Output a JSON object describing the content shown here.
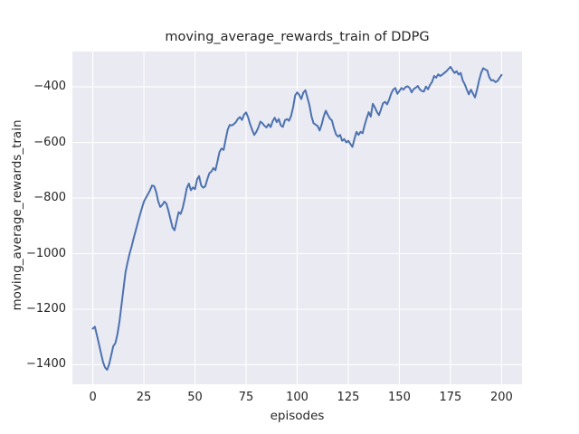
{
  "chart_data": {
    "type": "line",
    "title": "moving_average_rewards_train of DDPG",
    "xlabel": "episodes",
    "ylabel": "moving_average_rewards_train",
    "xlim": [
      -10,
      210
    ],
    "ylim": [
      -1470,
      -273
    ],
    "x_ticks": [
      0,
      25,
      50,
      75,
      100,
      125,
      150,
      175,
      200
    ],
    "x_tick_labels": [
      "0",
      "25",
      "50",
      "75",
      "100",
      "125",
      "150",
      "175",
      "200"
    ],
    "y_ticks": [
      -400,
      -600,
      -800,
      -1000,
      -1200,
      -1400
    ],
    "y_tick_labels": [
      "−400",
      "−600",
      "−800",
      "−1000",
      "−1200",
      "−1400"
    ],
    "grid": true,
    "legend": null,
    "colors": {
      "line": "#4c72b0",
      "axes_background": "#eaeaf2",
      "gridline": "#ffffff",
      "text": "#262626",
      "figure_background": "#ffffff"
    },
    "series": [
      {
        "name": "moving_average_rewards_train",
        "points": [
          [
            0,
            -1270
          ],
          [
            1,
            -1263
          ],
          [
            2,
            -1293
          ],
          [
            3,
            -1325
          ],
          [
            4,
            -1358
          ],
          [
            5,
            -1390
          ],
          [
            6,
            -1410
          ],
          [
            7,
            -1418
          ],
          [
            8,
            -1398
          ],
          [
            9,
            -1366
          ],
          [
            10,
            -1333
          ],
          [
            11,
            -1323
          ],
          [
            12,
            -1292
          ],
          [
            13,
            -1247
          ],
          [
            14,
            -1187
          ],
          [
            15,
            -1127
          ],
          [
            16,
            -1067
          ],
          [
            17,
            -1032
          ],
          [
            18,
            -1000
          ],
          [
            19,
            -974
          ],
          [
            20,
            -944
          ],
          [
            21,
            -917
          ],
          [
            22,
            -889
          ],
          [
            23,
            -862
          ],
          [
            24,
            -837
          ],
          [
            25,
            -813
          ],
          [
            26,
            -799
          ],
          [
            27,
            -786
          ],
          [
            28,
            -772
          ],
          [
            29,
            -755
          ],
          [
            30,
            -757
          ],
          [
            31,
            -778
          ],
          [
            32,
            -812
          ],
          [
            33,
            -832
          ],
          [
            34,
            -825
          ],
          [
            35,
            -813
          ],
          [
            36,
            -820
          ],
          [
            37,
            -846
          ],
          [
            38,
            -876
          ],
          [
            39,
            -906
          ],
          [
            40,
            -916
          ],
          [
            41,
            -883
          ],
          [
            42,
            -851
          ],
          [
            43,
            -857
          ],
          [
            44,
            -835
          ],
          [
            45,
            -802
          ],
          [
            46,
            -764
          ],
          [
            47,
            -748
          ],
          [
            48,
            -772
          ],
          [
            49,
            -762
          ],
          [
            50,
            -768
          ],
          [
            51,
            -733
          ],
          [
            52,
            -721
          ],
          [
            53,
            -754
          ],
          [
            54,
            -763
          ],
          [
            55,
            -758
          ],
          [
            56,
            -733
          ],
          [
            57,
            -711
          ],
          [
            58,
            -705
          ],
          [
            59,
            -692
          ],
          [
            60,
            -700
          ],
          [
            61,
            -668
          ],
          [
            62,
            -634
          ],
          [
            63,
            -622
          ],
          [
            64,
            -627
          ],
          [
            65,
            -589
          ],
          [
            66,
            -554
          ],
          [
            67,
            -537
          ],
          [
            68,
            -539
          ],
          [
            69,
            -534
          ],
          [
            70,
            -527
          ],
          [
            71,
            -515
          ],
          [
            72,
            -509
          ],
          [
            73,
            -519
          ],
          [
            74,
            -500
          ],
          [
            75,
            -492
          ],
          [
            76,
            -510
          ],
          [
            77,
            -535
          ],
          [
            78,
            -555
          ],
          [
            79,
            -573
          ],
          [
            80,
            -562
          ],
          [
            81,
            -546
          ],
          [
            82,
            -525
          ],
          [
            83,
            -531
          ],
          [
            84,
            -540
          ],
          [
            85,
            -546
          ],
          [
            86,
            -534
          ],
          [
            87,
            -545
          ],
          [
            88,
            -524
          ],
          [
            89,
            -511
          ],
          [
            90,
            -527
          ],
          [
            91,
            -516
          ],
          [
            92,
            -539
          ],
          [
            93,
            -544
          ],
          [
            94,
            -520
          ],
          [
            95,
            -516
          ],
          [
            96,
            -522
          ],
          [
            97,
            -505
          ],
          [
            98,
            -474
          ],
          [
            99,
            -431
          ],
          [
            100,
            -420
          ],
          [
            101,
            -429
          ],
          [
            102,
            -444
          ],
          [
            103,
            -421
          ],
          [
            104,
            -412
          ],
          [
            105,
            -439
          ],
          [
            106,
            -466
          ],
          [
            107,
            -506
          ],
          [
            108,
            -531
          ],
          [
            109,
            -536
          ],
          [
            110,
            -541
          ],
          [
            111,
            -557
          ],
          [
            112,
            -535
          ],
          [
            113,
            -506
          ],
          [
            114,
            -486
          ],
          [
            115,
            -501
          ],
          [
            116,
            -514
          ],
          [
            117,
            -521
          ],
          [
            118,
            -549
          ],
          [
            119,
            -571
          ],
          [
            120,
            -579
          ],
          [
            121,
            -573
          ],
          [
            122,
            -594
          ],
          [
            123,
            -588
          ],
          [
            124,
            -600
          ],
          [
            125,
            -594
          ],
          [
            126,
            -605
          ],
          [
            127,
            -616
          ],
          [
            128,
            -588
          ],
          [
            129,
            -562
          ],
          [
            130,
            -573
          ],
          [
            131,
            -562
          ],
          [
            132,
            -567
          ],
          [
            133,
            -538
          ],
          [
            134,
            -513
          ],
          [
            135,
            -491
          ],
          [
            136,
            -507
          ],
          [
            137,
            -461
          ],
          [
            138,
            -474
          ],
          [
            139,
            -490
          ],
          [
            140,
            -502
          ],
          [
            141,
            -481
          ],
          [
            142,
            -459
          ],
          [
            143,
            -454
          ],
          [
            144,
            -463
          ],
          [
            145,
            -446
          ],
          [
            146,
            -424
          ],
          [
            147,
            -410
          ],
          [
            148,
            -404
          ],
          [
            149,
            -425
          ],
          [
            150,
            -415
          ],
          [
            151,
            -404
          ],
          [
            152,
            -410
          ],
          [
            153,
            -401
          ],
          [
            154,
            -398
          ],
          [
            155,
            -404
          ],
          [
            156,
            -420
          ],
          [
            157,
            -408
          ],
          [
            158,
            -403
          ],
          [
            159,
            -397
          ],
          [
            160,
            -409
          ],
          [
            161,
            -415
          ],
          [
            162,
            -417
          ],
          [
            163,
            -399
          ],
          [
            164,
            -409
          ],
          [
            165,
            -393
          ],
          [
            166,
            -382
          ],
          [
            167,
            -361
          ],
          [
            168,
            -367
          ],
          [
            169,
            -355
          ],
          [
            170,
            -361
          ],
          [
            171,
            -356
          ],
          [
            172,
            -350
          ],
          [
            173,
            -344
          ],
          [
            174,
            -336
          ],
          [
            175,
            -328
          ],
          [
            176,
            -340
          ],
          [
            177,
            -350
          ],
          [
            178,
            -344
          ],
          [
            179,
            -356
          ],
          [
            180,
            -350
          ],
          [
            181,
            -377
          ],
          [
            182,
            -391
          ],
          [
            183,
            -410
          ],
          [
            184,
            -427
          ],
          [
            185,
            -410
          ],
          [
            186,
            -424
          ],
          [
            187,
            -438
          ],
          [
            188,
            -410
          ],
          [
            189,
            -377
          ],
          [
            190,
            -350
          ],
          [
            191,
            -333
          ],
          [
            192,
            -338
          ],
          [
            193,
            -341
          ],
          [
            194,
            -366
          ],
          [
            195,
            -377
          ],
          [
            196,
            -376
          ],
          [
            197,
            -383
          ],
          [
            198,
            -379
          ],
          [
            199,
            -368
          ],
          [
            200,
            -357
          ]
        ]
      }
    ]
  }
}
